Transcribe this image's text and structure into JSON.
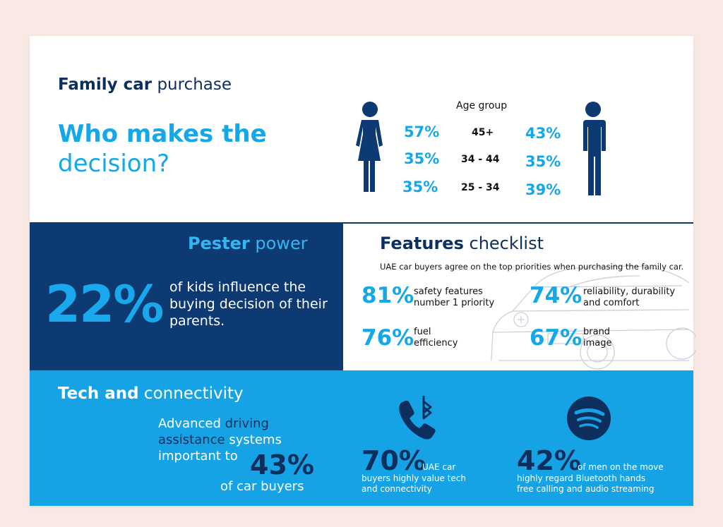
{
  "header": {
    "title_bold": "Family car",
    "title_light": "purchase",
    "question_line1": "Who makes the",
    "question_line2": "decision?"
  },
  "age_group": {
    "label": "Age group",
    "rows": [
      {
        "female": "57%",
        "age": "45+",
        "male": "43%"
      },
      {
        "female": "35%",
        "age": "34 - 44",
        "male": "35%"
      },
      {
        "female": "35%",
        "age": "25 - 34",
        "male": "39%"
      }
    ]
  },
  "pester": {
    "title_bold": "Pester",
    "title_light": "power",
    "percent": "22%",
    "text": "of kids influence the buying decision of their parents."
  },
  "features": {
    "title_bold": "Features",
    "title_light": "checklist",
    "subtitle": "UAE car buyers agree on the top priorities when purchasing the family car.",
    "items": [
      {
        "percent": "81%",
        "line1": "safety features",
        "line2": "number 1 priority"
      },
      {
        "percent": "74%",
        "line1": "reliability, durability",
        "line2": "and comfort"
      },
      {
        "percent": "76%",
        "line1": "fuel",
        "line2": "efficiency"
      },
      {
        "percent": "67%",
        "line1": "brand",
        "line2": "image"
      }
    ]
  },
  "tech": {
    "title_bold": "Tech and",
    "title_light": "connectivity",
    "adas_w1": "Advanced",
    "adas_w2": "driving",
    "adas_w3": "assistance",
    "adas_w4": "systems",
    "adas_w5": "important to",
    "adas_percent": "43%",
    "adas_tail": "of car buyers",
    "phone_percent": "70%",
    "phone_l1": "UAE car",
    "phone_l2": "buyers highly value tech",
    "phone_l3": "and connectivity",
    "spotify_percent": "42%",
    "spotify_l1": "of men on the move",
    "spotify_l2": "highly regard Bluetooth hands",
    "spotify_l3": "free calling and audio streaming"
  },
  "colors": {
    "navy": "#0d2f5e",
    "sky": "#14a8e8",
    "panel_dark": "#0d3a72",
    "panel_blue": "#16a3e6",
    "background": "#f9e9e5"
  }
}
